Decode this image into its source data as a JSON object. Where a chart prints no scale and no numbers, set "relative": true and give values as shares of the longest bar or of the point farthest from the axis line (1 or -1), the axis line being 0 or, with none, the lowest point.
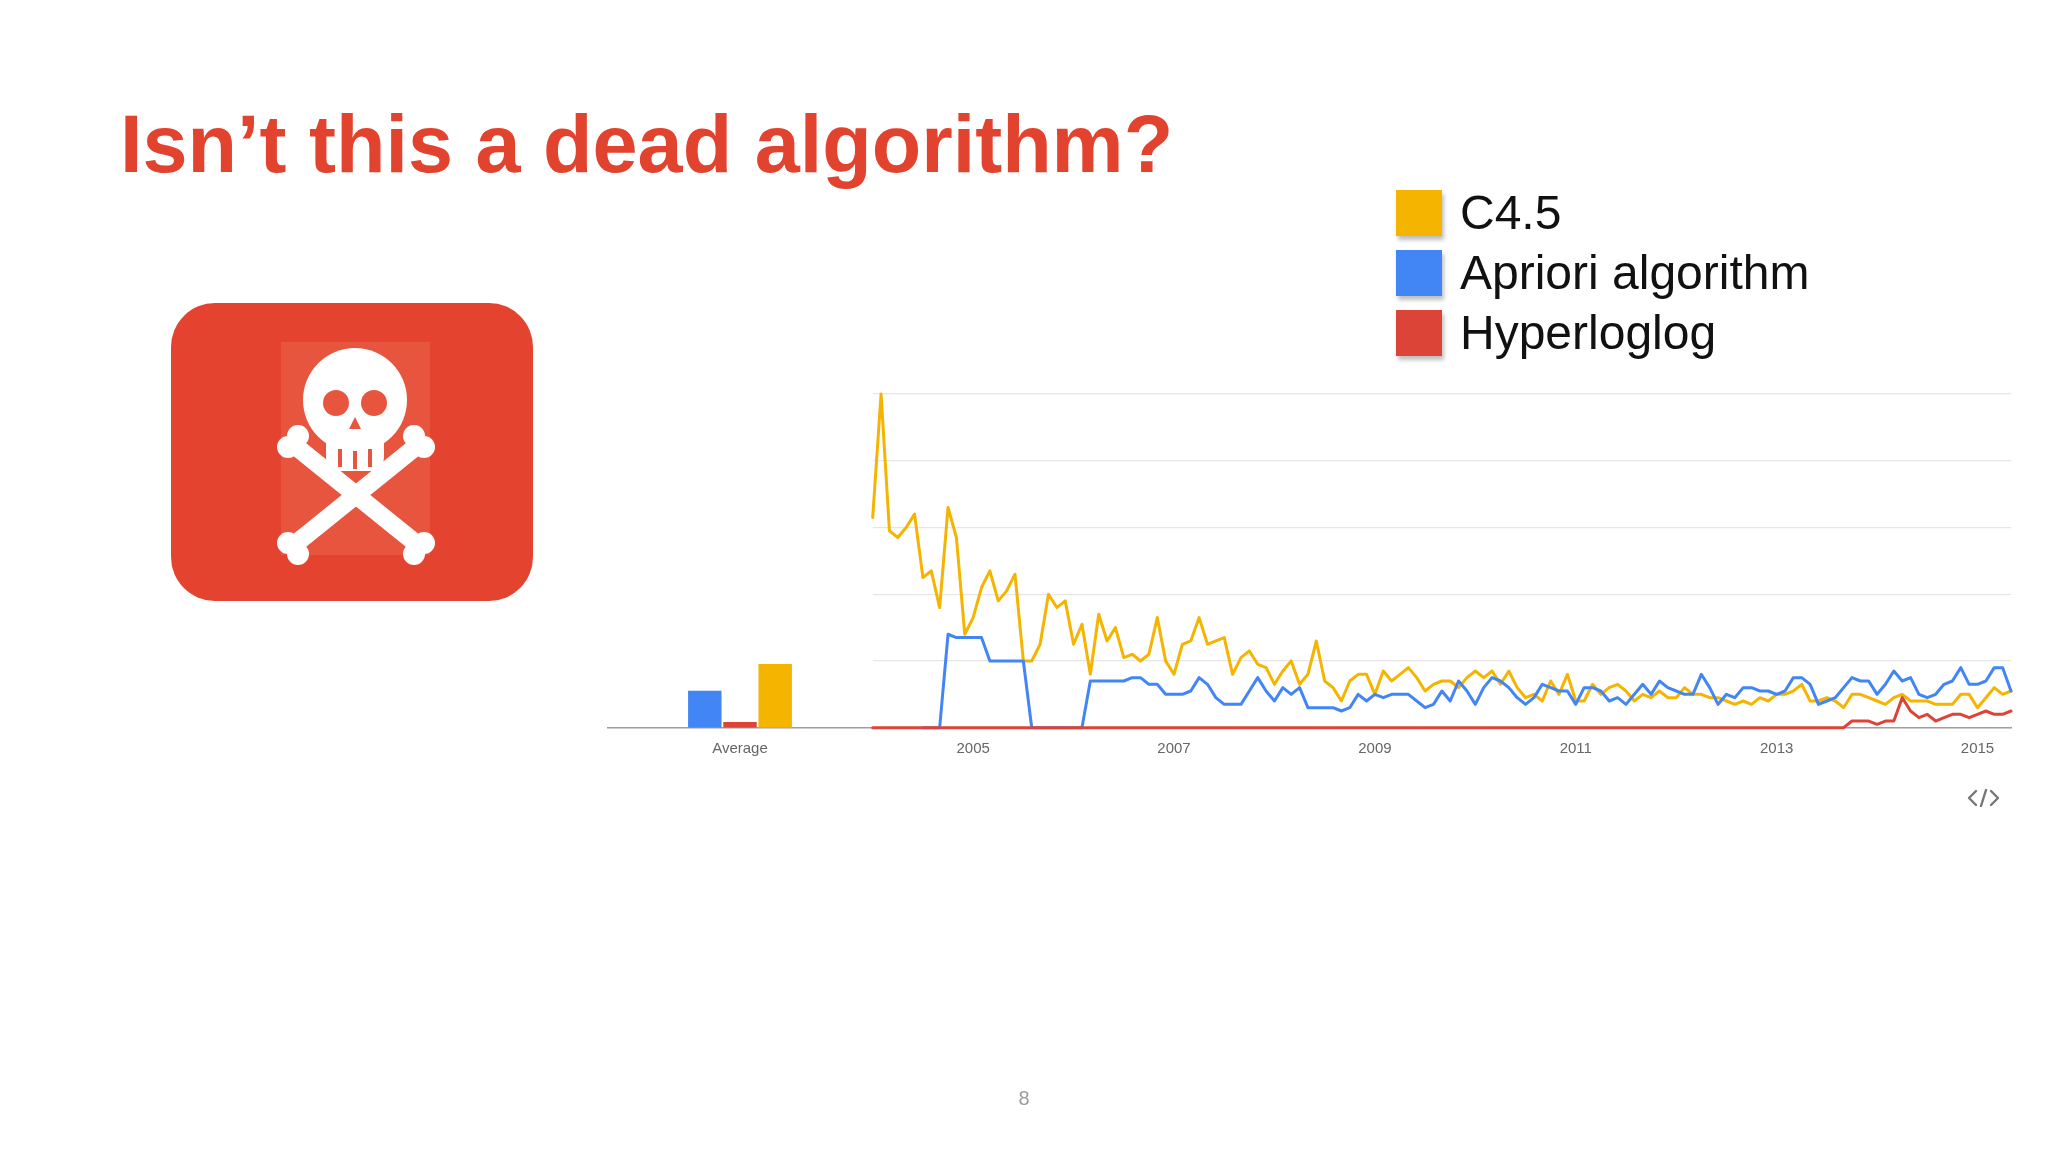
{
  "chart_data": [
    {
      "type": "bar",
      "title": "Isn’t this a dead algorithm?",
      "categories": [
        "Average"
      ],
      "relative": true,
      "series": [
        {
          "color": "#4285f4",
          "values": [
            0.58
          ]
        },
        {
          "color": "#db4437",
          "values": [
            0.09
          ]
        },
        {
          "color": "#f4b400",
          "values": [
            1
          ]
        }
      ]
    },
    {
      "type": "line",
      "relative": true,
      "grid": "y",
      "legend": "top right",
      "marker": "none",
      "xlim": [
        "2004-01",
        "2015-05"
      ],
      "xticks": [
        "2005",
        "2007",
        "2009",
        "2011",
        "2013",
        "2015"
      ],
      "annotations": [
        "8"
      ],
      "x": [
        "2004-01",
        "2004-02",
        "2004-03",
        "2004-04",
        "2004-05",
        "2004-06",
        "2004-07",
        "2004-08",
        "2004-09",
        "2004-10",
        "2004-11",
        "2004-12",
        "2005-01",
        "2005-02",
        "2005-03",
        "2005-04",
        "2005-05",
        "2005-06",
        "2005-07",
        "2005-08",
        "2005-09",
        "2005-10",
        "2005-11",
        "2005-12",
        "2006-01",
        "2006-02",
        "2006-03",
        "2006-04",
        "2006-05",
        "2006-06",
        "2006-07",
        "2006-08",
        "2006-09",
        "2006-10",
        "2006-11",
        "2006-12",
        "2007-01",
        "2007-02",
        "2007-03",
        "2007-04",
        "2007-05",
        "2007-06",
        "2007-07",
        "2007-08",
        "2007-09",
        "2007-10",
        "2007-11",
        "2007-12",
        "2008-01",
        "2008-02",
        "2008-03",
        "2008-04",
        "2008-05",
        "2008-06",
        "2008-07",
        "2008-08",
        "2008-09",
        "2008-10",
        "2008-11",
        "2008-12",
        "2009-01",
        "2009-02",
        "2009-03",
        "2009-04",
        "2009-05",
        "2009-06",
        "2009-07",
        "2009-08",
        "2009-09",
        "2009-10",
        "2009-11",
        "2009-12",
        "2010-01",
        "2010-02",
        "2010-03",
        "2010-04",
        "2010-05",
        "2010-06",
        "2010-07",
        "2010-08",
        "2010-09",
        "2010-10",
        "2010-11",
        "2010-12",
        "2011-01",
        "2011-02",
        "2011-03",
        "2011-04",
        "2011-05",
        "2011-06",
        "2011-07",
        "2011-08",
        "2011-09",
        "2011-10",
        "2011-11",
        "2011-12",
        "2012-01",
        "2012-02",
        "2012-03",
        "2012-04",
        "2012-05",
        "2012-06",
        "2012-07",
        "2012-08",
        "2012-09",
        "2012-10",
        "2012-11",
        "2012-12",
        "2013-01",
        "2013-02",
        "2013-03",
        "2013-04",
        "2013-05",
        "2013-06",
        "2013-07",
        "2013-08",
        "2013-09",
        "2013-10",
        "2013-11",
        "2013-12",
        "2014-01",
        "2014-02",
        "2014-03",
        "2014-04",
        "2014-05",
        "2014-06",
        "2014-07",
        "2014-08",
        "2014-09",
        "2014-10",
        "2014-11",
        "2014-12",
        "2015-01",
        "2015-02",
        "2015-03",
        "2015-04",
        "2015-05"
      ],
      "series": [
        {
          "name": "C4.5",
          "color": "#f4b400",
          "values": [
            0.63,
            1,
            0.59,
            0.57,
            0.6,
            0.64,
            0.45,
            0.47,
            0.36,
            0.66,
            0.57,
            0.28,
            0.33,
            0.42,
            0.47,
            0.38,
            0.41,
            0.46,
            0.2,
            0.2,
            0.25,
            0.4,
            0.36,
            0.38,
            0.25,
            0.31,
            0.16,
            0.34,
            0.26,
            0.3,
            0.21,
            0.22,
            0.2,
            0.22,
            0.33,
            0.2,
            0.16,
            0.25,
            0.26,
            0.33,
            0.25,
            0.26,
            0.27,
            0.16,
            0.21,
            0.23,
            0.19,
            0.18,
            0.13,
            0.17,
            0.2,
            0.13,
            0.16,
            0.26,
            0.14,
            0.12,
            0.08,
            0.14,
            0.16,
            0.16,
            0.1,
            0.17,
            0.14,
            0.16,
            0.18,
            0.15,
            0.11,
            0.13,
            0.14,
            0.14,
            0.12,
            0.15,
            0.17,
            0.15,
            0.17,
            0.13,
            0.17,
            0.12,
            0.09,
            0.1,
            0.08,
            0.14,
            0.1,
            0.16,
            0.08,
            0.08,
            0.13,
            0.1,
            0.12,
            0.13,
            0.11,
            0.08,
            0.1,
            0.09,
            0.11,
            0.09,
            0.09,
            0.12,
            0.1,
            0.1,
            0.09,
            0.09,
            0.08,
            0.07,
            0.08,
            0.07,
            0.09,
            0.08,
            0.1,
            0.1,
            0.11,
            0.13,
            0.08,
            0.08,
            0.09,
            0.08,
            0.06,
            0.1,
            0.1,
            0.09,
            0.08,
            0.07,
            0.09,
            0.1,
            0.08,
            0.08,
            0.08,
            0.07,
            0.07,
            0.07,
            0.1,
            0.1,
            0.06,
            0.09,
            0.12,
            0.1,
            0.11
          ]
        },
        {
          "name": "Apriori algorithm",
          "color": "#4285f4",
          "values": [
            null,
            null,
            null,
            null,
            null,
            null,
            0,
            0,
            0,
            0.28,
            0.27,
            0.27,
            0.27,
            0.27,
            0.2,
            0.2,
            0.2,
            0.2,
            0.2,
            0,
            0,
            0,
            0,
            0,
            0,
            0,
            0.14,
            0.14,
            0.14,
            0.14,
            0.14,
            0.15,
            0.15,
            0.13,
            0.13,
            0.1,
            0.1,
            0.1,
            0.11,
            0.15,
            0.13,
            0.09,
            0.07,
            0.07,
            0.07,
            0.11,
            0.15,
            0.11,
            0.08,
            0.12,
            0.1,
            0.12,
            0.06,
            0.06,
            0.06,
            0.06,
            0.05,
            0.06,
            0.1,
            0.08,
            0.1,
            0.09,
            0.1,
            0.1,
            0.1,
            0.08,
            0.06,
            0.07,
            0.11,
            0.08,
            0.14,
            0.11,
            0.07,
            0.12,
            0.15,
            0.14,
            0.12,
            0.09,
            0.07,
            0.09,
            0.13,
            0.12,
            0.11,
            0.11,
            0.07,
            0.12,
            0.12,
            0.11,
            0.08,
            0.09,
            0.07,
            0.1,
            0.13,
            0.1,
            0.14,
            0.12,
            0.11,
            0.1,
            0.1,
            0.16,
            0.12,
            0.07,
            0.1,
            0.09,
            0.12,
            0.12,
            0.11,
            0.11,
            0.1,
            0.11,
            0.15,
            0.15,
            0.13,
            0.07,
            0.08,
            0.09,
            0.12,
            0.15,
            0.14,
            0.14,
            0.1,
            0.13,
            0.17,
            0.14,
            0.15,
            0.1,
            0.09,
            0.1,
            0.13,
            0.14,
            0.18,
            0.13,
            0.13,
            0.14,
            0.18,
            0.18,
            0.11
          ]
        },
        {
          "name": "Hyperloglog",
          "color": "#db4437",
          "values": [
            0,
            0,
            0,
            0,
            0,
            0,
            0,
            0,
            0,
            0,
            0,
            0,
            0,
            0,
            0,
            0,
            0,
            0,
            0,
            0,
            0,
            0,
            0,
            0,
            0,
            0,
            0,
            0,
            0,
            0,
            0,
            0,
            0,
            0,
            0,
            0,
            0,
            0,
            0,
            0,
            0,
            0,
            0,
            0,
            0,
            0,
            0,
            0,
            0,
            0,
            0,
            0,
            0,
            0,
            0,
            0,
            0,
            0,
            0,
            0,
            0,
            0,
            0,
            0,
            0,
            0,
            0,
            0,
            0,
            0,
            0,
            0,
            0,
            0,
            0,
            0,
            0,
            0,
            0,
            0,
            0,
            0,
            0,
            0,
            0,
            0,
            0,
            0,
            0,
            0,
            0,
            0,
            0,
            0,
            0,
            0,
            0,
            0,
            0,
            0,
            0,
            0,
            0,
            0,
            0,
            0,
            0,
            0,
            0,
            0,
            0,
            0,
            0,
            0,
            0,
            0,
            0,
            0.02,
            0.02,
            0.02,
            0.01,
            0.02,
            0.02,
            0.09,
            0.05,
            0.03,
            0.04,
            0.02,
            0.03,
            0.04,
            0.04,
            0.03,
            0.04,
            0.05,
            0.04,
            0.04,
            0.05
          ]
        }
      ]
    }
  ]
}
